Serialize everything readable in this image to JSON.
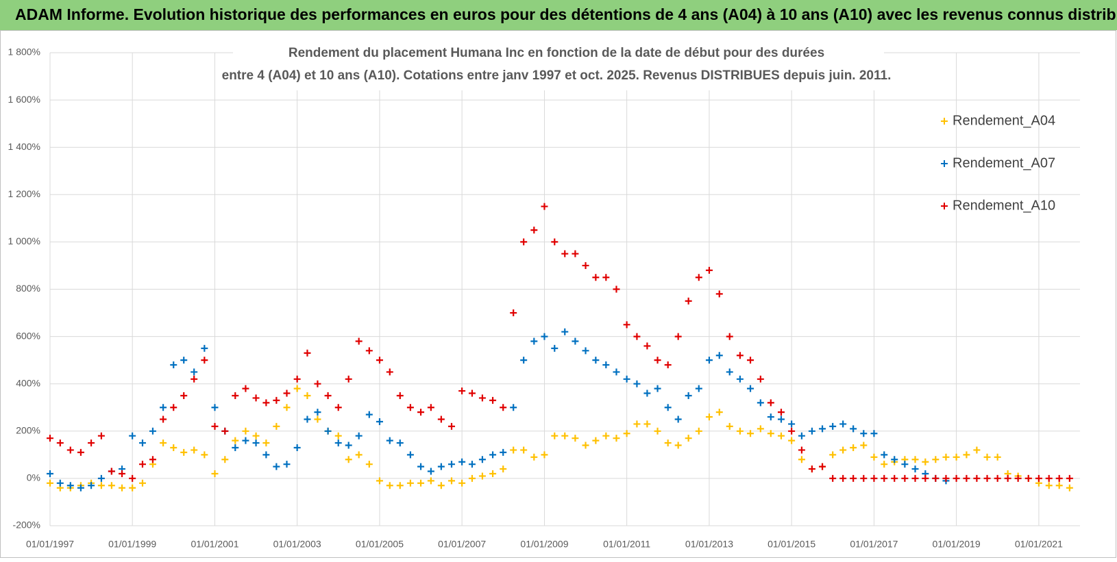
{
  "banner": "ADAM Informe. Evolution historique des performances en euros pour des détentions de 4 ans (A04) à 10 ans (A10) avec les revenus connus distribués",
  "chart_data": {
    "type": "scatter",
    "title": "Rendement du placement Humana Inc en fonction de la date de début pour des durées",
    "subtitle": "entre 4 (A04) et 10 ans (A10). Cotations entre janv 1997 et oct. 2025. Revenus DISTRIBUES depuis juin. 2011.",
    "x": [
      "01/01/1997",
      "01/04/1997",
      "01/07/1997",
      "01/10/1997",
      "01/01/1998",
      "01/04/1998",
      "01/07/1998",
      "01/10/1998",
      "01/01/1999",
      "01/04/1999",
      "01/07/1999",
      "01/10/1999",
      "01/01/2000",
      "01/04/2000",
      "01/07/2000",
      "01/10/2000",
      "01/01/2001",
      "01/04/2001",
      "01/07/2001",
      "01/10/2001",
      "01/01/2002",
      "01/04/2002",
      "01/07/2002",
      "01/10/2002",
      "01/01/2003",
      "01/04/2003",
      "01/07/2003",
      "01/10/2003",
      "01/01/2004",
      "01/04/2004",
      "01/07/2004",
      "01/10/2004",
      "01/01/2005",
      "01/04/2005",
      "01/07/2005",
      "01/10/2005",
      "01/01/2006",
      "01/04/2006",
      "01/07/2006",
      "01/10/2006",
      "01/01/2007",
      "01/04/2007",
      "01/07/2007",
      "01/10/2007",
      "01/01/2008",
      "01/04/2008",
      "01/07/2008",
      "01/10/2008",
      "01/01/2009",
      "01/04/2009",
      "01/07/2009",
      "01/10/2009",
      "01/01/2010",
      "01/04/2010",
      "01/07/2010",
      "01/10/2010",
      "01/01/2011",
      "01/04/2011",
      "01/07/2011",
      "01/10/2011",
      "01/01/2012",
      "01/04/2012",
      "01/07/2012",
      "01/10/2012",
      "01/01/2013",
      "01/04/2013",
      "01/07/2013",
      "01/10/2013",
      "01/01/2014",
      "01/04/2014",
      "01/07/2014",
      "01/10/2014",
      "01/01/2015",
      "01/04/2015",
      "01/07/2015",
      "01/10/2015",
      "01/01/2016",
      "01/04/2016",
      "01/07/2016",
      "01/10/2016",
      "01/01/2017",
      "01/04/2017",
      "01/07/2017",
      "01/10/2017",
      "01/01/2018",
      "01/04/2018",
      "01/07/2018",
      "01/10/2018",
      "01/01/2019",
      "01/04/2019",
      "01/07/2019",
      "01/10/2019",
      "01/01/2020",
      "01/04/2020",
      "01/07/2020",
      "01/10/2020",
      "01/01/2021",
      "01/04/2021",
      "01/07/2021",
      "01/10/2021"
    ],
    "series": [
      {
        "name": "Rendement_A04",
        "color": "#ffc000",
        "values": [
          -20,
          -40,
          -40,
          -30,
          -20,
          -30,
          -30,
          -40,
          -40,
          -20,
          60,
          150,
          130,
          110,
          120,
          100,
          20,
          80,
          160,
          200,
          180,
          150,
          220,
          300,
          380,
          350,
          250,
          200,
          180,
          80,
          100,
          60,
          -10,
          -30,
          -30,
          -20,
          -20,
          -10,
          -30,
          -10,
          -20,
          0,
          10,
          20,
          40,
          120,
          120,
          90,
          100,
          180,
          180,
          170,
          140,
          160,
          180,
          170,
          190,
          230,
          230,
          200,
          150,
          140,
          170,
          200,
          260,
          280,
          220,
          200,
          190,
          210,
          190,
          180,
          160,
          80,
          40,
          50,
          100,
          120,
          130,
          140,
          90,
          60,
          70,
          80,
          80,
          70,
          80,
          90,
          90,
          100,
          120,
          90,
          90,
          20,
          10,
          0,
          -20,
          -30,
          -30,
          -40
        ]
      },
      {
        "name": "Rendement_A07",
        "color": "#0070c0",
        "values": [
          20,
          -20,
          -30,
          -40,
          -30,
          0,
          30,
          40,
          180,
          150,
          200,
          300,
          480,
          500,
          450,
          550,
          300,
          200,
          130,
          160,
          150,
          100,
          50,
          60,
          130,
          250,
          280,
          200,
          150,
          140,
          180,
          270,
          240,
          160,
          150,
          100,
          50,
          30,
          50,
          60,
          70,
          60,
          80,
          100,
          110,
          300,
          500,
          580,
          600,
          550,
          620,
          580,
          540,
          500,
          480,
          450,
          420,
          400,
          360,
          380,
          300,
          250,
          350,
          380,
          500,
          520,
          450,
          420,
          380,
          320,
          260,
          250,
          230,
          180,
          200,
          210,
          220,
          230,
          210,
          190,
          190,
          100,
          80,
          60,
          40,
          20,
          0,
          -10,
          null,
          null,
          null,
          null,
          null,
          null,
          null,
          null,
          null,
          null,
          null,
          null
        ]
      },
      {
        "name": "Rendement_A10",
        "color": "#e00000",
        "values": [
          170,
          150,
          120,
          110,
          150,
          180,
          30,
          20,
          0,
          60,
          80,
          250,
          300,
          350,
          420,
          500,
          220,
          200,
          350,
          380,
          340,
          320,
          330,
          360,
          420,
          530,
          400,
          350,
          300,
          420,
          580,
          540,
          500,
          450,
          350,
          300,
          280,
          300,
          250,
          220,
          370,
          360,
          340,
          330,
          300,
          700,
          1000,
          1050,
          1150,
          1000,
          950,
          950,
          900,
          850,
          850,
          800,
          650,
          600,
          560,
          500,
          480,
          600,
          750,
          850,
          880,
          780,
          600,
          520,
          500,
          420,
          320,
          280,
          200,
          120,
          40,
          50,
          0,
          0,
          0,
          0,
          0,
          0,
          0,
          0,
          0,
          0,
          0,
          0,
          0,
          0,
          0,
          0,
          0,
          0,
          0,
          0,
          0,
          0,
          0,
          0
        ]
      }
    ],
    "xlim": [
      "01/01/1997",
      "01/01/2022"
    ],
    "xticks": [
      "01/01/1997",
      "01/01/1999",
      "01/01/2001",
      "01/01/2003",
      "01/01/2005",
      "01/01/2007",
      "01/01/2009",
      "01/01/2011",
      "01/01/2013",
      "01/01/2015",
      "01/01/2017",
      "01/01/2019",
      "01/01/2021"
    ],
    "ylim": [
      -200,
      1800
    ],
    "yticks": [
      {
        "value": -200,
        "label": "-200%"
      },
      {
        "value": 0,
        "label": "0%"
      },
      {
        "value": 200,
        "label": "200%"
      },
      {
        "value": 400,
        "label": "400%"
      },
      {
        "value": 600,
        "label": "600%"
      },
      {
        "value": 800,
        "label": "800%"
      },
      {
        "value": 1000,
        "label": "1 000%"
      },
      {
        "value": 1200,
        "label": "1 200%"
      },
      {
        "value": 1400,
        "label": "1 400%"
      },
      {
        "value": 1600,
        "label": "1 600%"
      },
      {
        "value": 1800,
        "label": "1 800%"
      }
    ],
    "grid": true,
    "legend": "upper right"
  }
}
